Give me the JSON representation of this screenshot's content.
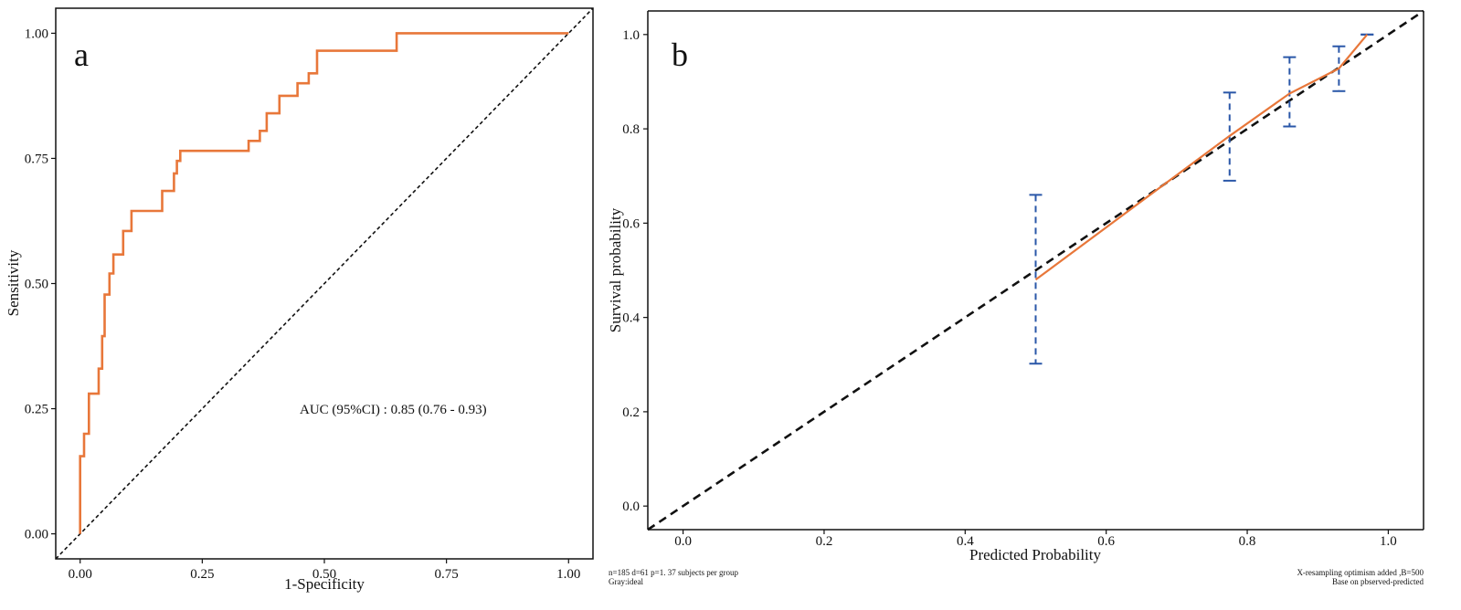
{
  "chart_data": [
    {
      "type": "line",
      "panel_label": "a",
      "xlabel": "1-Specificity",
      "ylabel": "Sensitivity",
      "xlim": [
        -0.05,
        1.05
      ],
      "ylim": [
        -0.05,
        1.05
      ],
      "x_ticks": [
        0,
        0.25,
        0.5,
        0.75,
        1.0
      ],
      "x_tick_labels": [
        "0.00",
        "0.25",
        "0.50",
        "0.75",
        "1.00"
      ],
      "y_ticks": [
        0,
        0.25,
        0.5,
        0.75,
        1.0
      ],
      "y_tick_labels": [
        "0.00",
        "0.25",
        "0.50",
        "0.75",
        "1.00"
      ],
      "annotation": "AUC (95%CI) : 0.85 (0.76 - 0.93)",
      "grid": false,
      "colors": {
        "roc": "#e8773a",
        "reference": "#111111"
      },
      "series": [
        {
          "x": [
            0,
            0,
            0.008,
            0.008,
            0.018,
            0.018,
            0.038,
            0.038,
            0.045,
            0.045,
            0.05,
            0.05,
            0.06,
            0.06,
            0.068,
            0.068,
            0.088,
            0.088,
            0.105,
            0.105,
            0.168,
            0.168,
            0.192,
            0.192,
            0.198,
            0.198,
            0.205,
            0.205,
            0.345,
            0.345,
            0.368,
            0.368,
            0.382,
            0.382,
            0.408,
            0.408,
            0.445,
            0.445,
            0.468,
            0.468,
            0.485,
            0.485,
            0.508,
            0.508,
            0.648,
            0.648,
            0.96,
            1.0
          ],
          "y": [
            0,
            0.155,
            0.155,
            0.2,
            0.2,
            0.28,
            0.28,
            0.33,
            0.33,
            0.395,
            0.395,
            0.478,
            0.478,
            0.52,
            0.52,
            0.558,
            0.558,
            0.605,
            0.605,
            0.645,
            0.645,
            0.685,
            0.685,
            0.72,
            0.72,
            0.745,
            0.745,
            0.765,
            0.765,
            0.785,
            0.785,
            0.805,
            0.805,
            0.84,
            0.84,
            0.875,
            0.875,
            0.9,
            0.9,
            0.92,
            0.92,
            0.965,
            0.965,
            0.965,
            0.965,
            1.0,
            1.0,
            1.0
          ]
        }
      ]
    },
    {
      "type": "line",
      "panel_label": "b",
      "xlabel": "Predicted Probability",
      "ylabel": "Survival probability",
      "xlim": [
        -0.05,
        1.05
      ],
      "ylim": [
        -0.05,
        1.05
      ],
      "x_ticks": [
        0,
        0.2,
        0.4,
        0.6,
        0.8,
        1.0
      ],
      "x_tick_labels": [
        "0.0",
        "0.2",
        "0.4",
        "0.6",
        "0.8",
        "1.0"
      ],
      "y_ticks": [
        0,
        0.2,
        0.4,
        0.6,
        0.8,
        1.0
      ],
      "y_tick_labels": [
        "0.0",
        "0.2",
        "0.4",
        "0.6",
        "0.8",
        "1.0"
      ],
      "grid": false,
      "colors": {
        "calibration": "#e8773a",
        "ideal": "#111111",
        "errorbar": "#2a57a8"
      },
      "series": [
        {
          "x": [
            0.5,
            0.775,
            0.86,
            0.93,
            0.97
          ],
          "y": [
            0.48,
            0.785,
            0.875,
            0.928,
            1.0
          ]
        }
      ],
      "error_bars": [
        {
          "x": 0.5,
          "low": 0.302,
          "high": 0.66
        },
        {
          "x": 0.775,
          "low": 0.69,
          "high": 0.877
        },
        {
          "x": 0.86,
          "low": 0.805,
          "high": 0.952
        },
        {
          "x": 0.93,
          "low": 0.88,
          "high": 0.975
        },
        {
          "x": 0.97,
          "low": 1.0,
          "high": 1.0
        }
      ],
      "footnote_left": [
        "n=185 d=61 p=1. 37 subjects per group",
        "Gray:ideal"
      ],
      "footnote_right": [
        "X-resampling optimism added ,B=500",
        "Base on pbserved-predicted"
      ]
    }
  ]
}
